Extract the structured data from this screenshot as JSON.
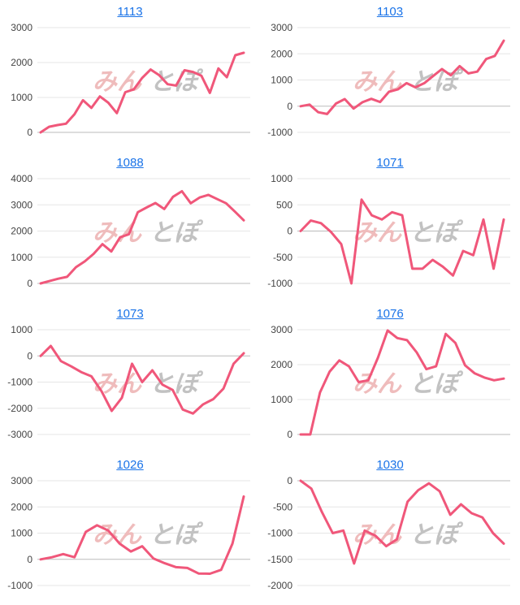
{
  "watermark": {
    "part1": "みん",
    "part2": "とぽ"
  },
  "colors": {
    "line": "#f0577a",
    "grid": "#e6e6e6",
    "axis": "#bbbbbb",
    "title": "#1a73e8"
  },
  "chart_data": [
    {
      "type": "line",
      "title": "1113",
      "yticks": [
        0,
        1000,
        2000,
        3000
      ],
      "ylim": [
        0,
        3000
      ],
      "values": [
        0,
        160,
        210,
        250,
        520,
        920,
        700,
        1030,
        850,
        550,
        1150,
        1230,
        1560,
        1800,
        1640,
        1380,
        1340,
        1780,
        1730,
        1620,
        1130,
        1830,
        1580,
        2210,
        2280
      ]
    },
    {
      "type": "line",
      "title": "1103",
      "yticks": [
        -1000,
        0,
        1000,
        2000,
        3000
      ],
      "ylim": [
        -1000,
        3000
      ],
      "values": [
        0,
        60,
        -230,
        -300,
        100,
        270,
        -90,
        150,
        280,
        160,
        550,
        640,
        880,
        720,
        880,
        1150,
        1420,
        1180,
        1530,
        1250,
        1320,
        1800,
        1920,
        2500
      ]
    },
    {
      "type": "line",
      "title": "1088",
      "yticks": [
        0,
        1000,
        2000,
        3000,
        4000
      ],
      "ylim": [
        0,
        4000
      ],
      "values": [
        0,
        90,
        180,
        250,
        620,
        840,
        1130,
        1500,
        1220,
        1760,
        1880,
        2720,
        2900,
        3070,
        2840,
        3310,
        3520,
        3060,
        3280,
        3380,
        3220,
        3060,
        2740,
        2410
      ]
    },
    {
      "type": "line",
      "title": "1071",
      "yticks": [
        -1000,
        -500,
        0,
        500,
        1000
      ],
      "ylim": [
        -1000,
        1000
      ],
      "values": [
        0,
        200,
        150,
        -20,
        -250,
        -1000,
        600,
        300,
        220,
        360,
        300,
        -720,
        -720,
        -550,
        -680,
        -850,
        -380,
        -460,
        220,
        -720,
        220
      ]
    },
    {
      "type": "line",
      "title": "1073",
      "yticks": [
        -3000,
        -2000,
        -1000,
        0,
        1000
      ],
      "ylim": [
        -3000,
        1000
      ],
      "values": [
        0,
        380,
        -200,
        -400,
        -620,
        -780,
        -1350,
        -2100,
        -1600,
        -300,
        -1000,
        -550,
        -1100,
        -1300,
        -2050,
        -2200,
        -1850,
        -1650,
        -1250,
        -300,
        100
      ]
    },
    {
      "type": "line",
      "title": "1076",
      "yticks": [
        0,
        1000,
        2000,
        3000
      ],
      "ylim": [
        0,
        3000
      ],
      "values": [
        0,
        0,
        1200,
        1800,
        2120,
        1950,
        1500,
        1550,
        2200,
        2980,
        2760,
        2700,
        2350,
        1870,
        1950,
        2880,
        2620,
        1980,
        1750,
        1630,
        1550,
        1600
      ]
    },
    {
      "type": "line",
      "title": "1026",
      "yticks": [
        -1000,
        0,
        1000,
        2000,
        3000
      ],
      "ylim": [
        -1000,
        3000
      ],
      "values": [
        0,
        80,
        200,
        80,
        1050,
        1300,
        1100,
        600,
        300,
        500,
        30,
        -150,
        -300,
        -330,
        -540,
        -550,
        -400,
        600,
        2400
      ]
    },
    {
      "type": "line",
      "title": "1030",
      "yticks": [
        -2000,
        -1500,
        -1000,
        -500,
        0
      ],
      "ylim": [
        -2000,
        0
      ],
      "values": [
        0,
        -150,
        -600,
        -1000,
        -950,
        -1580,
        -950,
        -1050,
        -1250,
        -1120,
        -400,
        -180,
        -50,
        -200,
        -650,
        -450,
        -620,
        -700,
        -1000,
        -1200
      ]
    }
  ]
}
